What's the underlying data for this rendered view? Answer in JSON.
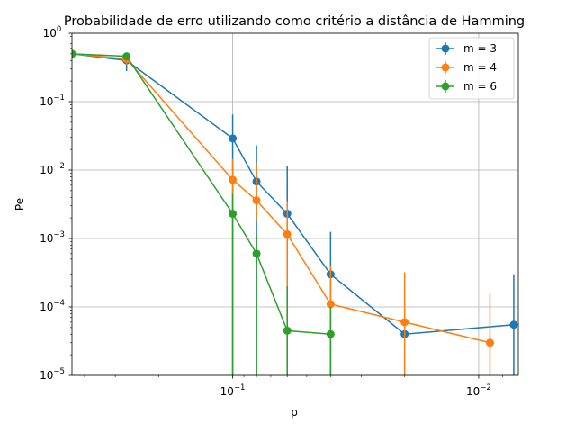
{
  "chart_data": {
    "type": "line",
    "title": "Probabilidade de erro utilizando como critério a distância de Hamming",
    "xlabel": "p",
    "ylabel": "Pe",
    "xscale": "log",
    "yscale": "log",
    "x_axis_inverted": true,
    "xlim": [
      0.45,
      0.0069
    ],
    "ylim": [
      1e-05,
      1
    ],
    "xticks": [
      {
        "value": 0.1,
        "base": "10",
        "exp": "−1"
      },
      {
        "value": 0.01,
        "base": "10",
        "exp": "−2"
      }
    ],
    "yticks": [
      {
        "value": 1,
        "base": "10",
        "exp": "0"
      },
      {
        "value": 0.1,
        "base": "10",
        "exp": "−1"
      },
      {
        "value": 0.01,
        "base": "10",
        "exp": "−2"
      },
      {
        "value": 0.001,
        "base": "10",
        "exp": "−3"
      },
      {
        "value": 0.0001,
        "base": "10",
        "exp": "−4"
      },
      {
        "value": 1e-05,
        "base": "10",
        "exp": "−5"
      }
    ],
    "grid": true,
    "legend_position": "top-right",
    "series": [
      {
        "name": "m = 3",
        "color": "#1f77b4",
        "x": [
          0.45,
          0.27,
          0.1,
          0.08,
          0.06,
          0.04,
          0.02,
          0.0072
        ],
        "y": [
          0.5,
          0.4,
          0.029,
          0.0068,
          0.0023,
          0.0003,
          4e-05,
          5.5e-05
        ],
        "yerr_low": [
          0.5,
          0.28,
          1e-05,
          1e-05,
          1e-05,
          1e-05,
          1e-05,
          1e-05
        ],
        "yerr_high": [
          0.5,
          0.5,
          0.065,
          0.023,
          0.0115,
          0.00125,
          1e-05,
          0.0003
        ]
      },
      {
        "name": "m = 4",
        "color": "#ff7f0e",
        "x": [
          0.45,
          0.27,
          0.1,
          0.08,
          0.06,
          0.04,
          0.02,
          0.009
        ],
        "y": [
          0.5,
          0.42,
          0.0072,
          0.0036,
          0.00115,
          0.00011,
          6e-05,
          3e-05
        ],
        "yerr_low": [
          0.5,
          0.35,
          1e-05,
          0.0018,
          1e-05,
          1e-05,
          1e-05,
          1e-05
        ],
        "yerr_high": [
          0.5,
          0.5,
          0.0145,
          0.0125,
          0.0035,
          0.0004,
          0.00032,
          0.00016
        ]
      },
      {
        "name": "m = 6",
        "color": "#2ca02c",
        "x": [
          0.45,
          0.27,
          0.1,
          0.08,
          0.06,
          0.04
        ],
        "y": [
          0.5,
          0.46,
          0.0023,
          0.0006,
          4.5e-05,
          4e-05
        ],
        "yerr_low": [
          0.5,
          0.42,
          1e-05,
          1e-05,
          1e-05,
          1e-05
        ],
        "yerr_high": [
          0.5,
          0.5,
          0.0045,
          0.0012,
          0.0002,
          0.0001
        ]
      }
    ]
  }
}
